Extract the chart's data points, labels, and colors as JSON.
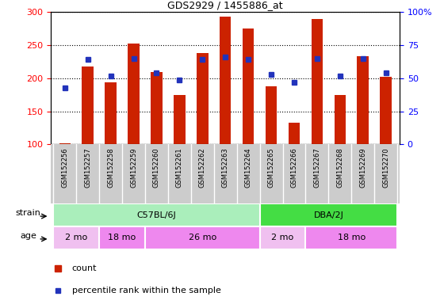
{
  "title": "GDS2929 / 1455886_at",
  "samples": [
    "GSM152256",
    "GSM152257",
    "GSM152258",
    "GSM152259",
    "GSM152260",
    "GSM152261",
    "GSM152262",
    "GSM152263",
    "GSM152264",
    "GSM152265",
    "GSM152266",
    "GSM152267",
    "GSM152268",
    "GSM152269",
    "GSM152270"
  ],
  "counts": [
    102,
    218,
    194,
    253,
    210,
    175,
    238,
    293,
    275,
    188,
    133,
    290,
    175,
    233,
    202
  ],
  "percentile": [
    43,
    64,
    52,
    65,
    54,
    49,
    64,
    66,
    64,
    53,
    47,
    65,
    52,
    65,
    54
  ],
  "ylim_left": [
    100,
    300
  ],
  "ylim_right": [
    0,
    100
  ],
  "yticks_left": [
    100,
    150,
    200,
    250,
    300
  ],
  "yticks_right": [
    0,
    25,
    50,
    75,
    100
  ],
  "bar_color": "#cc2200",
  "dot_color": "#2233bb",
  "plot_bg": "#ffffff",
  "xlabels_bg": "#cccccc",
  "strain_groups": [
    {
      "label": "C57BL/6J",
      "start": 0,
      "end": 8,
      "color": "#aaeebb"
    },
    {
      "label": "DBA/2J",
      "start": 9,
      "end": 14,
      "color": "#44dd44"
    }
  ],
  "age_groups": [
    {
      "label": "2 mo",
      "start": 0,
      "end": 1,
      "color": "#f0c0f0"
    },
    {
      "label": "18 mo",
      "start": 2,
      "end": 3,
      "color": "#ee88ee"
    },
    {
      "label": "26 mo",
      "start": 4,
      "end": 8,
      "color": "#ee88ee"
    },
    {
      "label": "2 mo",
      "start": 9,
      "end": 10,
      "color": "#f0c0f0"
    },
    {
      "label": "18 mo",
      "start": 11,
      "end": 14,
      "color": "#ee88ee"
    }
  ],
  "legend_count_label": "count",
  "legend_percentile_label": "percentile rank within the sample",
  "bar_width": 0.5
}
